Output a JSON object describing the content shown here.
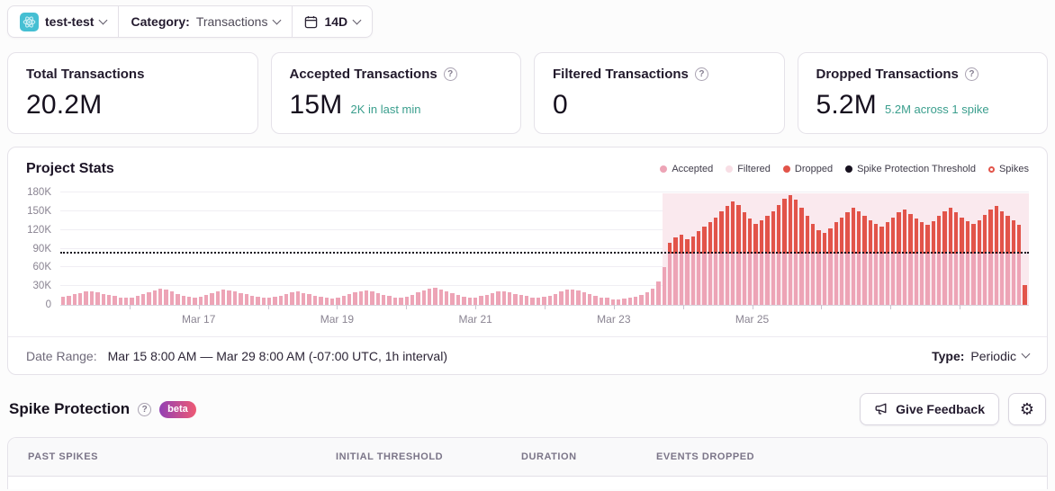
{
  "header": {
    "project_name": "test-test",
    "category_label": "Category:",
    "category_value": "Transactions",
    "period_value": "14D"
  },
  "stats_cards": [
    {
      "title": "Total Transactions",
      "value": "20.2M",
      "subtext": ""
    },
    {
      "title": "Accepted Transactions",
      "value": "15M",
      "subtext": "2K in last min"
    },
    {
      "title": "Filtered Transactions",
      "value": "0",
      "subtext": ""
    },
    {
      "title": "Dropped Transactions",
      "value": "5.2M",
      "subtext": "5.2M across 1 spike"
    }
  ],
  "chart_card": {
    "title": "Project Stats",
    "footer": {
      "date_range_label": "Date Range:",
      "date_range_value": "Mar 15 8:00 AM — Mar 29 8:00 AM (-07:00 UTC, 1h interval)",
      "type_label": "Type:",
      "type_value": "Periodic"
    }
  },
  "chart_data": {
    "type": "bar",
    "title": "Project Stats",
    "x_start": "Mar 15 8:00 AM",
    "x_end": "Mar 29 8:00 AM",
    "interval": "1h",
    "total_days": 14,
    "y_max": 180,
    "y_unit": "K",
    "y_ticks": [
      0,
      30,
      60,
      90,
      120,
      150,
      180
    ],
    "x_labels": [
      {
        "label": "Mar 17",
        "day": 2
      },
      {
        "label": "Mar 19",
        "day": 4
      },
      {
        "label": "Mar 21",
        "day": 6
      },
      {
        "label": "Mar 23",
        "day": 8
      },
      {
        "label": "Mar 25",
        "day": 10
      }
    ],
    "threshold_k": 82,
    "trailing_dropped_k": 32,
    "legend": [
      {
        "label": "Accepted",
        "color": "#eda4b6",
        "shape": "dot"
      },
      {
        "label": "Filtered",
        "color": "#f8dee5",
        "shape": "dot"
      },
      {
        "label": "Dropped",
        "color": "#e2544a",
        "shape": "dot"
      },
      {
        "label": "Spike Protection Threshold",
        "color": "#17111f",
        "shape": "dot"
      },
      {
        "label": "Spikes",
        "color": "#e2544a",
        "shape": "ring"
      }
    ],
    "series": [
      {
        "name": "accepted_pre_spike_k",
        "values": [
          13,
          15,
          17,
          19,
          21,
          22,
          20,
          18,
          16,
          14,
          12,
          11,
          12,
          14,
          17,
          20,
          23,
          26,
          24,
          21,
          18,
          15,
          13,
          12,
          13,
          16,
          19,
          22,
          24,
          23,
          21,
          19,
          17,
          15,
          13,
          12,
          11,
          13,
          15,
          18,
          20,
          21,
          19,
          17,
          15,
          13,
          11,
          10,
          12,
          14,
          17,
          20,
          22,
          23,
          21,
          19,
          16,
          14,
          12,
          11,
          13,
          16,
          20,
          23,
          26,
          27,
          25,
          22,
          19,
          16,
          13,
          12,
          12,
          14,
          16,
          19,
          21,
          22,
          20,
          18,
          16,
          14,
          12,
          11,
          13,
          15,
          18,
          21,
          24,
          25,
          23,
          20,
          17,
          14,
          12,
          11,
          9,
          9,
          10,
          11,
          13,
          16,
          20,
          26,
          38,
          60
        ]
      },
      {
        "name": "spike_total_k",
        "values": [
          100,
          108,
          112,
          105,
          110,
          118,
          125,
          133,
          140,
          150,
          158,
          165,
          160,
          148,
          138,
          130,
          135,
          142,
          150,
          160,
          170,
          175,
          168,
          155,
          142,
          130,
          120,
          115,
          122,
          132,
          140,
          148,
          155,
          150,
          143,
          136,
          130,
          125,
          132,
          140,
          148,
          152,
          146,
          138,
          132,
          128,
          134,
          142,
          150,
          155,
          148,
          140,
          134,
          130,
          136,
          144,
          152,
          158,
          150,
          142,
          135,
          128
        ]
      }
    ],
    "colors": {
      "accepted": "#eda4b6",
      "dropped": "#e2544a",
      "filtered": "#f8dee5",
      "threshold": "#17111f",
      "spike_background": "#fae9ee"
    }
  },
  "spike_section": {
    "title": "Spike Protection",
    "beta_label": "beta",
    "feedback_button": "Give Feedback"
  },
  "table": {
    "columns": [
      "Past Spikes",
      "Initial Threshold",
      "Duration",
      "Events Dropped"
    ]
  },
  "colors": {
    "accent_teal": "#3a9e8d",
    "red": "#e2544a",
    "pink": "#eda4b6"
  }
}
